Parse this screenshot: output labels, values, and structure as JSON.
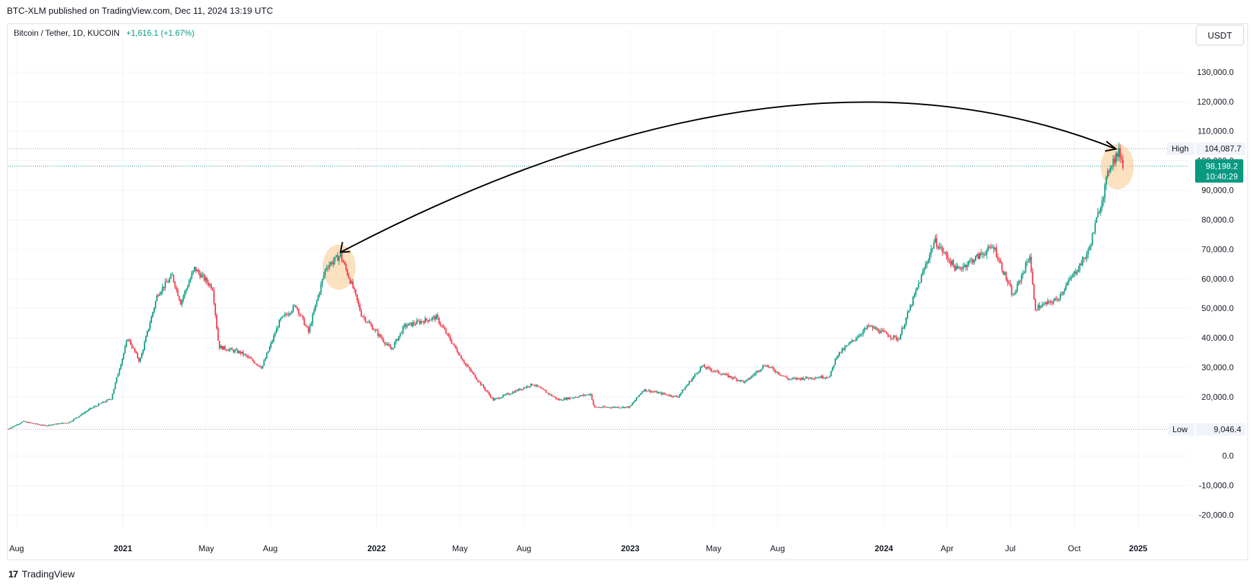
{
  "header": {
    "published_line": "BTC-XLM published on TradingView.com, Dec 11, 2024 13:19 UTC"
  },
  "symbol": {
    "name": "Bitcoin / Tether, 1D, KUCOIN",
    "change": "+1,616.1 (+1.67%)"
  },
  "currency_button": "USDT",
  "footer": {
    "brand": "TradingView",
    "logo_mark": "17"
  },
  "colors": {
    "up": "#089981",
    "down": "#f23645",
    "wick": "#5d606b",
    "grid": "#f0f3fa",
    "axis_text": "#131722",
    "highlight": "#f7c98b",
    "price_badge": "#089981",
    "arrow": "#000000"
  },
  "chart_data": {
    "type": "candlestick",
    "title": "",
    "xlabel": "",
    "ylabel": "",
    "ylim": [
      -25000,
      140000
    ],
    "y_ticks": [
      130000,
      120000,
      110000,
      100000,
      90000,
      80000,
      70000,
      60000,
      50000,
      40000,
      30000,
      20000,
      10000,
      0,
      -10000,
      -20000
    ],
    "y_tick_labels": [
      "130,000.0",
      "120,000.0",
      "110,000.0",
      "100,000.0",
      "90,000.0",
      "80,000.0",
      "70,000.0",
      "60,000.0",
      "50,000.0",
      "40,000.0",
      "30,000.0",
      "20,000.0",
      "10,000.0",
      "0.0",
      "-10,000.0",
      "-20,000.0"
    ],
    "x_range": [
      "2020-07-20",
      "2025-03-15"
    ],
    "x_ticks": [
      {
        "date": "2020-08-01",
        "label": "Aug",
        "bold": false
      },
      {
        "date": "2021-01-01",
        "label": "2021",
        "bold": true
      },
      {
        "date": "2021-05-01",
        "label": "May",
        "bold": false
      },
      {
        "date": "2021-08-01",
        "label": "Aug",
        "bold": false
      },
      {
        "date": "2022-01-01",
        "label": "2022",
        "bold": true
      },
      {
        "date": "2022-05-01",
        "label": "May",
        "bold": false
      },
      {
        "date": "2022-08-01",
        "label": "Aug",
        "bold": false
      },
      {
        "date": "2023-01-01",
        "label": "2023",
        "bold": true
      },
      {
        "date": "2023-05-01",
        "label": "May",
        "bold": false
      },
      {
        "date": "2023-08-01",
        "label": "Aug",
        "bold": false
      },
      {
        "date": "2024-01-01",
        "label": "2024",
        "bold": true
      },
      {
        "date": "2024-04-01",
        "label": "Apr",
        "bold": false
      },
      {
        "date": "2024-07-01",
        "label": "Jul",
        "bold": false
      },
      {
        "date": "2024-10-01",
        "label": "Oct",
        "bold": false
      },
      {
        "date": "2025-01-01",
        "label": "2025",
        "bold": true
      }
    ],
    "price_path": [
      [
        "2020-07-20",
        9200
      ],
      [
        "2020-08-10",
        11700
      ],
      [
        "2020-09-10",
        10300
      ],
      [
        "2020-10-15",
        11400
      ],
      [
        "2020-11-15",
        16000
      ],
      [
        "2020-12-15",
        19500
      ],
      [
        "2021-01-08",
        40000
      ],
      [
        "2021-01-25",
        32000
      ],
      [
        "2021-02-20",
        55000
      ],
      [
        "2021-03-13",
        61000
      ],
      [
        "2021-03-25",
        52000
      ],
      [
        "2021-04-14",
        63500
      ],
      [
        "2021-05-10",
        57000
      ],
      [
        "2021-05-19",
        37000
      ],
      [
        "2021-06-20",
        35000
      ],
      [
        "2021-07-20",
        30000
      ],
      [
        "2021-08-15",
        46000
      ],
      [
        "2021-09-07",
        51000
      ],
      [
        "2021-09-25",
        42000
      ],
      [
        "2021-10-20",
        64000
      ],
      [
        "2021-11-10",
        68000
      ],
      [
        "2021-11-28",
        57000
      ],
      [
        "2021-12-10",
        48000
      ],
      [
        "2022-01-22",
        36000
      ],
      [
        "2022-02-10",
        44000
      ],
      [
        "2022-03-28",
        47000
      ],
      [
        "2022-05-09",
        31000
      ],
      [
        "2022-06-18",
        19000
      ],
      [
        "2022-08-14",
        24400
      ],
      [
        "2022-09-20",
        19000
      ],
      [
        "2022-11-05",
        21000
      ],
      [
        "2022-11-10",
        16500
      ],
      [
        "2022-12-31",
        16600
      ],
      [
        "2023-01-20",
        22500
      ],
      [
        "2023-03-10",
        20000
      ],
      [
        "2023-04-14",
        30400
      ],
      [
        "2023-06-15",
        25000
      ],
      [
        "2023-07-14",
        31000
      ],
      [
        "2023-08-17",
        26000
      ],
      [
        "2023-10-15",
        27000
      ],
      [
        "2023-10-25",
        34000
      ],
      [
        "2023-12-10",
        44000
      ],
      [
        "2024-01-22",
        39500
      ],
      [
        "2024-03-14",
        73000
      ],
      [
        "2024-04-15",
        63000
      ],
      [
        "2024-06-07",
        71000
      ],
      [
        "2024-07-05",
        54000
      ],
      [
        "2024-07-29",
        68000
      ],
      [
        "2024-08-05",
        50000
      ],
      [
        "2024-09-06",
        53000
      ],
      [
        "2024-10-21",
        69000
      ],
      [
        "2024-11-12",
        89000
      ],
      [
        "2024-11-22",
        99000
      ],
      [
        "2024-12-05",
        103000
      ],
      [
        "2024-12-11",
        98198
      ]
    ],
    "annotations": {
      "high": {
        "label": "High",
        "value": 104087.7,
        "value_label": "104,087.7"
      },
      "low": {
        "label": "Low",
        "value": 9046.4,
        "value_label": "9,046.4"
      },
      "last_price": {
        "value": 98198.2,
        "value_label": "98,198.2",
        "countdown": "10:40:29"
      },
      "highlights": [
        {
          "date": "2021-11-08",
          "value": 64000
        },
        {
          "date": "2024-12-02",
          "value": 98000
        }
      ],
      "arrow": {
        "from": {
          "date": "2024-11-30",
          "value": 104000
        },
        "to": {
          "date": "2021-11-10",
          "value": 69000
        },
        "apex": {
          "date": "2023-08-15",
          "value": 125000
        }
      }
    }
  }
}
